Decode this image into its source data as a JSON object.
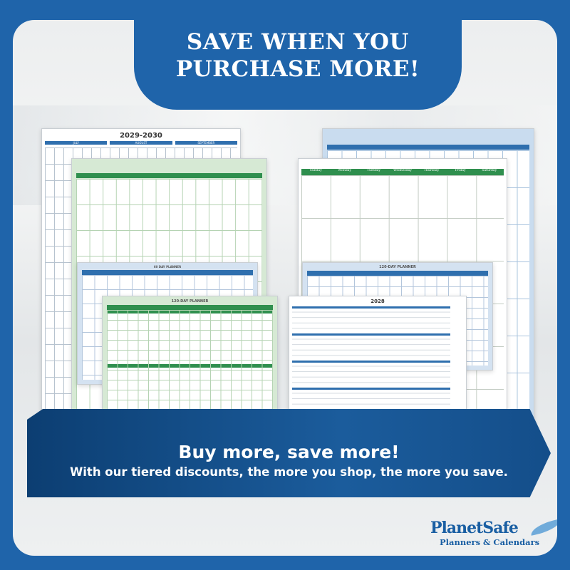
{
  "header": {
    "line1": "SAVE WHEN YOU",
    "line2": "PURCHASE MORE!"
  },
  "products": {
    "yearly": {
      "title": "2029-2030",
      "months": [
        "JULY",
        "AUGUST",
        "SEPTEMBER"
      ]
    },
    "monthly_days": [
      "Sunday",
      "Monday",
      "Tuesday",
      "Wednesday",
      "Thursday",
      "Friday",
      "Saturday"
    ],
    "planner_60": "60 DAY PLANNER",
    "planner_120": "120-DAY PLANNER",
    "year_2028": "2028"
  },
  "banner": {
    "headline": "Buy more, save more!",
    "subline": "With our tiered discounts, the more you shop, the more you save."
  },
  "logo": {
    "name": "PlanetSafe",
    "tagline": "Planners & Calendars"
  },
  "colors": {
    "brand_blue": "#1f64aa",
    "ribbon": "#0c3e72",
    "green": "#2f8f4e",
    "calendar_blue": "#2f6fae"
  }
}
